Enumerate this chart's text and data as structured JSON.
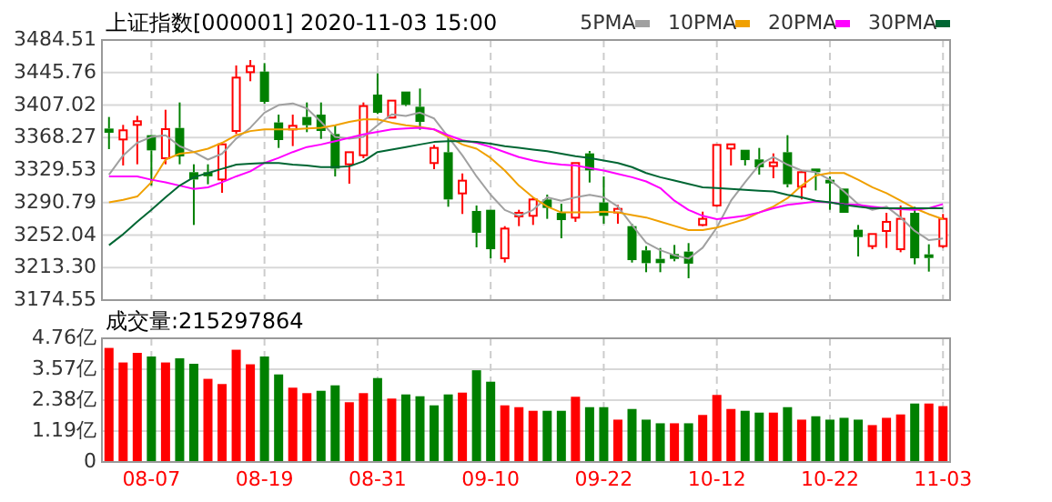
{
  "chart_data": [
    {
      "type": "candlestick",
      "title": "上证指数[000001] 2020-11-03 15:00",
      "legend": "top right",
      "grid": true,
      "tick_labels": "y",
      "categories": [
        null,
        null,
        null,
        null,
        null,
        null,
        null,
        null,
        null,
        null,
        null,
        null,
        null,
        null,
        null,
        null,
        null,
        null,
        null,
        null,
        null,
        null,
        null,
        null,
        null,
        null,
        null,
        null,
        null,
        null,
        null,
        null,
        null,
        null,
        null,
        null,
        null,
        null,
        null,
        null,
        null,
        null,
        null,
        null,
        null,
        null,
        null,
        null,
        null,
        null,
        null,
        null,
        null,
        null,
        null,
        null,
        null,
        null,
        null,
        null
      ],
      "ylim": [
        3174.55,
        3484.51
      ],
      "yticks": [
        3174.55,
        {
          "value": 3213.3,
          "label": "3213.30"
        },
        3252.04,
        3290.79,
        3329.53,
        3368.27,
        3407.02,
        3445.76,
        3484.51
      ],
      "ohlc": [
        [
          3379.0,
          3392.8,
          3354.5,
          3374.0
        ],
        [
          3366.0,
          3383.4,
          3335.0,
          3376.9
        ],
        [
          3383.4,
          3394.2,
          3336.4,
          3387.7
        ],
        [
          3371.1,
          3371.1,
          3311.1,
          3353.0
        ],
        [
          3343.6,
          3401.4,
          3336.4,
          3378.3
        ],
        [
          3379.7,
          3410.1,
          3336.4,
          3345.8
        ],
        [
          3327.0,
          3336.4,
          3264.1,
          3318.3
        ],
        [
          3327.0,
          3336.4,
          3312.6,
          3322.1
        ],
        [
          3318.3,
          3360.2,
          3302.4,
          3360.2
        ],
        [
          3376.1,
          3454.2,
          3372.5,
          3439.7
        ],
        [
          3446.2,
          3460.7,
          3435.4,
          3453.4
        ],
        [
          3446.9,
          3457.0,
          3408.6,
          3410.8
        ],
        [
          3386.3,
          3395.6,
          3355.9,
          3365.3
        ],
        [
          3379.0,
          3395.6,
          3358.1,
          3381.2
        ],
        [
          3392.8,
          3410.1,
          3374.7,
          3383.0
        ],
        [
          3395.6,
          3410.1,
          3366.7,
          3376.1
        ],
        [
          3372.5,
          3383.4,
          3321.9,
          3331.3
        ],
        [
          3336.4,
          3350.8,
          3313.3,
          3350.8
        ],
        [
          3347.2,
          3410.1,
          3343.6,
          3405.8
        ],
        [
          3419.5,
          3444.8,
          3396.4,
          3397.8
        ],
        [
          3392.0,
          3412.3,
          3392.0,
          3412.3
        ],
        [
          3423.1,
          3423.1,
          3405.8,
          3407.2
        ],
        [
          3405.0,
          3426.7,
          3377.6,
          3387.0
        ],
        [
          3337.9,
          3359.5,
          3330.6,
          3355.9
        ],
        [
          3350.8,
          3368.9,
          3285.8,
          3294.5
        ],
        [
          3301.7,
          3325.5,
          3277.2,
          3316.9
        ],
        [
          3280.8,
          3287.3,
          3237.4,
          3254.8
        ],
        [
          3282.2,
          3282.2,
          3224.4,
          3235.2
        ],
        [
          3224.4,
          3262.7,
          3219.3,
          3259.8
        ],
        [
          3275.7,
          3282.2,
          3262.7,
          3277.2
        ],
        [
          3275.0,
          3296.7,
          3264.1,
          3294.5
        ],
        [
          3294.5,
          3300.3,
          3271.4,
          3284.4
        ],
        [
          3278.6,
          3289.4,
          3248.2,
          3269.9
        ],
        [
          3272.8,
          3337.9,
          3267.8,
          3337.9
        ],
        [
          3349.4,
          3352.3,
          3314.7,
          3329.2
        ],
        [
          3290.9,
          3321.9,
          3265.6,
          3275.0
        ],
        [
          3280.0,
          3288.0,
          3265.6,
          3282.2
        ],
        [
          3262.7,
          3265.6,
          3219.3,
          3222.2
        ],
        [
          3233.8,
          3238.9,
          3207.8,
          3218.6
        ],
        [
          3223.7,
          3236.7,
          3207.8,
          3218.6
        ],
        [
          3229.5,
          3240.3,
          3220.8,
          3223.7
        ],
        [
          3232.4,
          3242.5,
          3200.6,
          3218.0
        ],
        [
          3264.1,
          3280.0,
          3262.7,
          3271.4
        ],
        [
          3287.3,
          3359.5,
          3285.8,
          3359.5
        ],
        [
          3355.2,
          3360.2,
          3335.0,
          3360.2
        ],
        [
          3353.7,
          3353.7,
          3335.0,
          3341.4
        ],
        [
          3342.2,
          3355.9,
          3324.1,
          3332.8
        ],
        [
          3335.0,
          3349.4,
          3319.8,
          3337.9
        ],
        [
          3350.8,
          3371.1,
          3308.9,
          3312.6
        ],
        [
          3309.7,
          3329.2,
          3294.5,
          3327.0
        ],
        [
          3331.3,
          3331.3,
          3305.3,
          3327.0
        ],
        [
          3316.9,
          3321.9,
          3282.2,
          3314.7
        ],
        [
          3307.5,
          3307.5,
          3278.6,
          3278.6
        ],
        [
          3258.4,
          3264.1,
          3226.6,
          3249.7
        ],
        [
          3238.9,
          3253.3,
          3235.2,
          3253.3
        ],
        [
          3256.9,
          3278.6,
          3236.7,
          3267.8
        ],
        [
          3235.2,
          3287.3,
          3231.6,
          3271.4
        ],
        [
          3278.6,
          3285.8,
          3217.2,
          3224.4
        ],
        [
          3228.0,
          3241.1,
          3208.5,
          3225.8
        ],
        [
          3238.9,
          3277.2,
          3236.7,
          3271.4
        ]
      ],
      "series": [
        {
          "type": "line",
          "name": "5PMA",
          "color": "#a0a0a0",
          "values": [
            3324,
            3347,
            3362,
            3369,
            3371,
            3358,
            3351,
            3342,
            3349,
            3367,
            3380,
            3398,
            3407,
            3409,
            3403,
            3387,
            3369,
            3367,
            3369,
            3383,
            3396,
            3394,
            3398,
            3391,
            3369,
            3347,
            3322,
            3300,
            3282,
            3275,
            3282,
            3297,
            3293,
            3297,
            3300,
            3297,
            3286,
            3264,
            3243,
            3234,
            3228,
            3224,
            3237,
            3261,
            3293,
            3315,
            3336,
            3345,
            3336,
            3329,
            3327,
            3318,
            3304,
            3289,
            3282,
            3286,
            3273,
            3257,
            3246,
            3248
          ]
        },
        {
          "type": "line",
          "name": "10PMA",
          "color": "#f0a000",
          "values": [
            3291,
            3294,
            3298,
            3315,
            3342,
            3349,
            3351,
            3355,
            3362,
            3371,
            3376,
            3378,
            3378,
            3378,
            3379,
            3380,
            3383,
            3387,
            3390,
            3390,
            3386,
            3383,
            3381,
            3378,
            3369,
            3360,
            3355,
            3344,
            3329,
            3311,
            3297,
            3286,
            3279,
            3279,
            3279,
            3280,
            3279,
            3276,
            3273,
            3268,
            3263,
            3258,
            3258,
            3261,
            3266,
            3271,
            3279,
            3286,
            3296,
            3311,
            3323,
            3326,
            3326,
            3318,
            3309,
            3302,
            3293,
            3284,
            3277,
            3271
          ]
        },
        {
          "type": "line",
          "name": "20PMA",
          "color": "#ff00ff",
          "values": [
            3322,
            3322,
            3322,
            3318,
            3315,
            3311,
            3307,
            3309,
            3315,
            3322,
            3328,
            3338,
            3344,
            3351,
            3357,
            3360,
            3364,
            3368,
            3372,
            3375,
            3378,
            3379,
            3380,
            3378,
            3371,
            3365,
            3362,
            3357,
            3351,
            3345,
            3341,
            3338,
            3336,
            3335,
            3332,
            3329,
            3325,
            3321,
            3316,
            3308,
            3293,
            3282,
            3275,
            3271,
            3273,
            3275,
            3279,
            3284,
            3288,
            3290,
            3292,
            3291,
            3289,
            3288,
            3286,
            3284,
            3283,
            3282,
            3284,
            3289
          ]
        },
        {
          "type": "line",
          "name": "30PMA",
          "color": "#006633",
          "values": [
            3240,
            3253,
            3268,
            3282,
            3297,
            3311,
            3321,
            3326,
            3331,
            3336,
            3337,
            3338,
            3338,
            3336,
            3335,
            3333,
            3333,
            3334,
            3340,
            3351,
            3354,
            3357,
            3360,
            3363,
            3364,
            3364,
            3363,
            3361,
            3358,
            3356,
            3354,
            3352,
            3349,
            3346,
            3344,
            3341,
            3338,
            3333,
            3326,
            3321,
            3317,
            3313,
            3309,
            3308,
            3307,
            3306,
            3305,
            3304,
            3300,
            3297,
            3293,
            3291,
            3288,
            3286,
            3284,
            3284,
            3284,
            3284,
            3284,
            3284
          ]
        }
      ]
    },
    {
      "type": "bar",
      "title": "成交量:215297864",
      "grid": true,
      "categories": [
        null,
        null,
        null,
        "08-07",
        null,
        null,
        null,
        null,
        null,
        null,
        null,
        "08-19",
        null,
        null,
        null,
        null,
        null,
        null,
        null,
        "08-31",
        null,
        null,
        null,
        null,
        null,
        null,
        null,
        "09-10",
        null,
        null,
        null,
        null,
        null,
        null,
        null,
        "09-22",
        null,
        null,
        null,
        null,
        null,
        null,
        null,
        "10-12",
        null,
        null,
        null,
        null,
        null,
        null,
        null,
        "10-22",
        null,
        null,
        null,
        null,
        null,
        null,
        null,
        "11-03"
      ],
      "ylim": [
        0,
        4.76
      ],
      "yticks": [
        0,
        {
          "value": 1.19,
          "label": "1.19亿"
        },
        {
          "value": 2.38,
          "label": "2.38亿"
        },
        {
          "value": 3.57,
          "label": "3.57亿"
        },
        {
          "value": 4.76,
          "label": "4.76亿"
        }
      ],
      "values": [
        4.39,
        3.83,
        4.2,
        4.06,
        3.83,
        3.99,
        3.78,
        3.2,
        3.0,
        4.32,
        3.76,
        4.06,
        3.37,
        2.86,
        2.65,
        2.74,
        2.95,
        2.3,
        2.65,
        3.23,
        2.44,
        2.6,
        2.53,
        2.18,
        2.6,
        2.67,
        3.53,
        3.09,
        2.18,
        2.11,
        1.97,
        1.97,
        1.97,
        2.51,
        2.11,
        2.11,
        1.63,
        2.04,
        1.63,
        1.49,
        1.49,
        1.49,
        1.81,
        2.58,
        2.04,
        1.97,
        1.9,
        1.9,
        2.11,
        1.63,
        1.76,
        1.63,
        1.7,
        1.63,
        1.42,
        1.7,
        1.83,
        2.25,
        2.25,
        2.15
      ],
      "colors": [
        "#ff0000",
        "#ff0000",
        "#ff0000",
        "#008000",
        "#ff0000",
        "#008000",
        "#008000",
        "#ff0000",
        "#ff0000",
        "#ff0000",
        "#ff0000",
        "#008000",
        "#008000",
        "#ff0000",
        "#ff0000",
        "#008000",
        "#008000",
        "#ff0000",
        "#ff0000",
        "#008000",
        "#ff0000",
        "#008000",
        "#008000",
        "#008000",
        "#008000",
        "#ff0000",
        "#008000",
        "#008000",
        "#ff0000",
        "#ff0000",
        "#ff0000",
        "#008000",
        "#008000",
        "#ff0000",
        "#008000",
        "#008000",
        "#ff0000",
        "#008000",
        "#008000",
        "#008000",
        "#ff0000",
        "#008000",
        "#ff0000",
        "#ff0000",
        "#ff0000",
        "#008000",
        "#008000",
        "#ff0000",
        "#008000",
        "#ff0000",
        "#008000",
        "#008000",
        "#008000",
        "#008000",
        "#ff0000",
        "#ff0000",
        "#ff0000",
        "#008000",
        "#ff0000",
        "#ff0000"
      ]
    }
  ]
}
